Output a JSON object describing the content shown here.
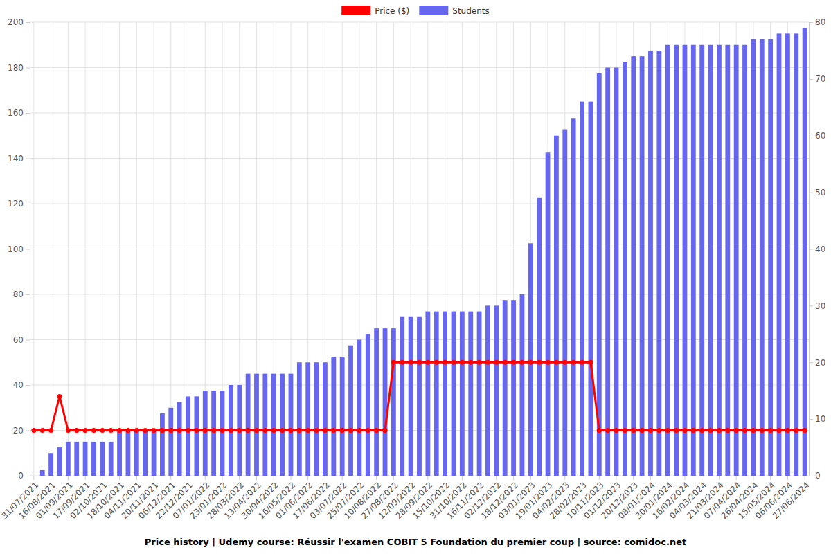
{
  "chart_data": {
    "type": "bar",
    "title": "Price history | Udemy course: Réussir l'examen COBIT 5 Foundation du premier coup | source: comidoc.net",
    "categories": [
      "31/07/2021",
      null,
      "16/08/2021",
      null,
      "01/09/2021",
      null,
      "17/09/2021",
      null,
      "02/10/2021",
      null,
      "18/10/2021",
      null,
      "04/11/2021",
      null,
      "20/11/2021",
      null,
      "06/12/2021",
      null,
      "22/12/2021",
      null,
      "07/01/2022",
      null,
      "23/01/2022",
      null,
      "28/03/2022",
      null,
      "13/04/2022",
      null,
      "30/04/2022",
      null,
      "16/05/2022",
      null,
      "01/06/2022",
      null,
      "17/06/2022",
      null,
      "03/07/2022",
      null,
      "25/07/2022",
      null,
      "10/08/2022",
      null,
      "27/08/2022",
      null,
      "12/09/2022",
      null,
      "28/09/2022",
      null,
      "15/10/2022",
      null,
      "31/10/2022",
      null,
      "16/11/2022",
      null,
      "02/12/2022",
      null,
      "18/12/2022",
      null,
      "03/01/2023",
      null,
      "19/01/2023",
      null,
      "04/02/2023",
      null,
      "28/02/2023",
      null,
      "10/11/2023",
      null,
      "01/12/2023",
      null,
      "20/12/2023",
      null,
      "08/01/2024",
      null,
      "30/01/2024",
      null,
      "16/02/2024",
      null,
      "04/03/2024",
      null,
      "21/03/2024",
      null,
      "07/04/2024",
      null,
      "26/04/2024",
      null,
      "15/05/2024",
      null,
      "06/06/2024",
      null,
      "27/06/2024"
    ],
    "series": [
      {
        "name": "Price ($)",
        "type": "line",
        "color": "#ff0000",
        "marker": "circle",
        "values": [
          20,
          20,
          20,
          35,
          20,
          20,
          20,
          20,
          20,
          20,
          20,
          20,
          20,
          20,
          20,
          20,
          20,
          20,
          20,
          20,
          20,
          20,
          20,
          20,
          20,
          20,
          20,
          20,
          20,
          20,
          20,
          20,
          20,
          20,
          20,
          20,
          20,
          20,
          20,
          20,
          20,
          20,
          50,
          50,
          50,
          50,
          50,
          50,
          50,
          50,
          50,
          50,
          50,
          50,
          50,
          50,
          50,
          50,
          50,
          50,
          50,
          50,
          50,
          50,
          50,
          50,
          20,
          20,
          20,
          20,
          20,
          20,
          20,
          20,
          20,
          20,
          20,
          20,
          20,
          20,
          20,
          20,
          20,
          20,
          20,
          20,
          20,
          20,
          20,
          20,
          20
        ]
      },
      {
        "name": "Students",
        "type": "bar",
        "axis": "y2",
        "color": "#6666ee",
        "values": [
          0,
          1,
          4,
          5,
          6,
          6,
          6,
          6,
          6,
          6,
          8,
          8,
          8,
          8,
          8,
          11,
          12,
          13,
          14,
          14,
          15,
          15,
          15,
          16,
          16,
          18,
          18,
          18,
          18,
          18,
          18,
          20,
          20,
          20,
          20,
          21,
          21,
          23,
          24,
          25,
          26,
          26,
          26,
          28,
          28,
          28,
          29,
          29,
          29,
          29,
          29,
          29,
          29,
          30,
          30,
          31,
          31,
          32,
          41,
          49,
          57,
          60,
          61,
          63,
          66,
          66,
          71,
          72,
          72,
          73,
          74,
          74,
          75,
          75,
          76,
          76,
          76,
          76,
          76,
          76,
          76,
          76,
          76,
          76,
          77,
          77,
          77,
          78,
          78,
          78,
          79
        ]
      }
    ],
    "ylim": [
      0,
      200
    ],
    "yticks": [
      0,
      20,
      40,
      60,
      80,
      100,
      120,
      140,
      160,
      180,
      200
    ],
    "y2lim": [
      0,
      80
    ],
    "y2ticks": [
      0,
      10,
      20,
      30,
      40,
      50,
      60,
      70,
      80
    ],
    "grid": true,
    "legend": "top"
  }
}
